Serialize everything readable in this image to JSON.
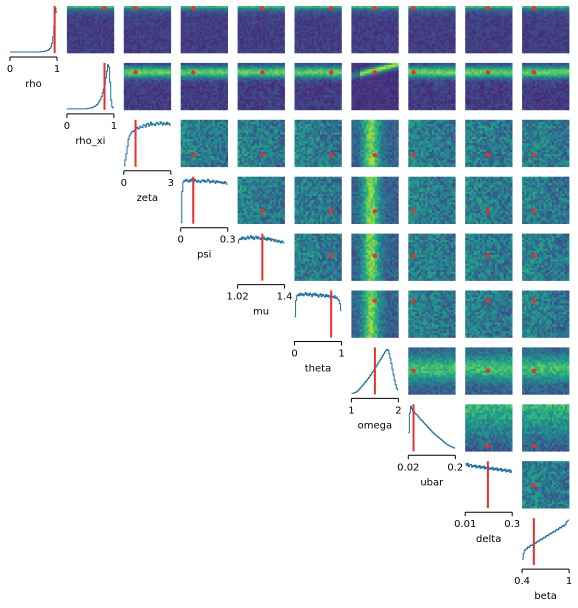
{
  "chart_data": {
    "type": "corner",
    "title": "",
    "parameters": [
      {
        "name": "rho",
        "range": [
          0,
          1
        ],
        "tick_labels": [
          "0",
          "1"
        ],
        "truth": 0.95,
        "hist": [
          0,
          0,
          0,
          0,
          0,
          0,
          0,
          0,
          0,
          0,
          0,
          0,
          0,
          0,
          0,
          0,
          0,
          0,
          0,
          0,
          0,
          0,
          0,
          0,
          0,
          0,
          0,
          0,
          0,
          0.01,
          0.01,
          0.01,
          0.02,
          0.02,
          0.03,
          0.04,
          0.06,
          0.08,
          0.12,
          0.2,
          0.35,
          0.6,
          1.0,
          0.9
        ]
      },
      {
        "name": "rho_xi",
        "range": [
          0,
          1
        ],
        "tick_labels": [
          "0",
          "1"
        ],
        "truth": 0.8,
        "hist": [
          0,
          0,
          0,
          0,
          0,
          0,
          0,
          0,
          0,
          0,
          0,
          0,
          0,
          0,
          0,
          0,
          0,
          0,
          0,
          0.01,
          0.01,
          0.02,
          0.02,
          0.03,
          0.04,
          0.05,
          0.06,
          0.08,
          0.1,
          0.13,
          0.17,
          0.22,
          0.28,
          0.36,
          0.45,
          0.56,
          0.7,
          0.86,
          1.0,
          0.95,
          0.6,
          0.2,
          0.05,
          0.02
        ]
      },
      {
        "name": "zeta",
        "range": [
          0,
          3
        ],
        "tick_labels": [
          "0",
          "3"
        ],
        "truth": 0.75,
        "hist": [
          0.0,
          0.12,
          0.25,
          0.4,
          0.55,
          0.62,
          0.66,
          0.7,
          0.72,
          0.71,
          0.74,
          0.78,
          0.8,
          0.76,
          0.78,
          0.82,
          0.8,
          0.79,
          0.85,
          0.84,
          0.8,
          0.86,
          0.88,
          0.82,
          0.85,
          0.9,
          0.84,
          0.87,
          0.86,
          0.83,
          0.88,
          0.9,
          0.85,
          0.86,
          0.91,
          0.88,
          0.84,
          0.89,
          0.87,
          0.85,
          0.9,
          0.86,
          0.88,
          0.84
        ]
      },
      {
        "name": "psi",
        "range": [
          0,
          0.3
        ],
        "tick_labels": [
          "0",
          "0.3"
        ],
        "truth": 0.08,
        "hist": [
          0.0,
          0.62,
          0.8,
          0.84,
          0.82,
          0.86,
          0.83,
          0.8,
          0.85,
          0.82,
          0.87,
          0.84,
          0.81,
          0.86,
          0.83,
          0.8,
          0.84,
          0.82,
          0.79,
          0.83,
          0.85,
          0.81,
          0.84,
          0.8,
          0.82,
          0.86,
          0.83,
          0.79,
          0.82,
          0.8,
          0.84,
          0.81,
          0.78,
          0.83,
          0.8,
          0.82,
          0.79,
          0.81,
          0.78,
          0.8,
          0.77,
          0.81,
          0.79,
          0.76
        ]
      },
      {
        "name": "mu",
        "range": [
          1.02,
          1.4
        ],
        "tick_labels": [
          "1.02",
          "1.4"
        ],
        "truth": 1.22,
        "hist": [
          0.55,
          0.6,
          0.62,
          0.6,
          0.64,
          0.61,
          0.63,
          0.6,
          0.62,
          0.65,
          0.61,
          0.63,
          0.66,
          0.62,
          0.64,
          0.6,
          0.63,
          0.65,
          0.61,
          0.64,
          0.62,
          0.6,
          0.63,
          0.61,
          0.64,
          0.6,
          0.62,
          0.59,
          0.63,
          0.6,
          0.62,
          0.58,
          0.61,
          0.6,
          0.57,
          0.6,
          0.58,
          0.56,
          0.59,
          0.57,
          0.55,
          0.58,
          0.56,
          0.55
        ]
      },
      {
        "name": "theta",
        "range": [
          0,
          1
        ],
        "tick_labels": [
          "0",
          "1"
        ],
        "truth": 0.78,
        "hist": [
          0.3,
          0.55,
          0.62,
          0.64,
          0.62,
          0.66,
          0.63,
          0.65,
          0.62,
          0.64,
          0.67,
          0.63,
          0.65,
          0.62,
          0.66,
          0.64,
          0.61,
          0.65,
          0.63,
          0.66,
          0.62,
          0.64,
          0.6,
          0.63,
          0.65,
          0.61,
          0.64,
          0.62,
          0.6,
          0.64,
          0.61,
          0.63,
          0.6,
          0.62,
          0.65,
          0.61,
          0.59,
          0.62,
          0.58,
          0.6,
          0.57,
          0.55,
          0.5,
          0.4
        ]
      },
      {
        "name": "omega",
        "range": [
          1,
          2
        ],
        "tick_labels": [
          "1",
          "2"
        ],
        "truth": 1.5,
        "hist": [
          0,
          0,
          0.01,
          0.02,
          0.03,
          0.05,
          0.07,
          0.1,
          0.12,
          0.15,
          0.18,
          0.21,
          0.24,
          0.27,
          0.3,
          0.33,
          0.36,
          0.4,
          0.43,
          0.47,
          0.5,
          0.54,
          0.58,
          0.62,
          0.66,
          0.7,
          0.74,
          0.78,
          0.82,
          0.86,
          0.9,
          0.94,
          0.97,
          1.0,
          0.98,
          0.9,
          0.8,
          0.68,
          0.55,
          0.42,
          0.3,
          0.2,
          0.12,
          0.08
        ]
      },
      {
        "name": "ubar",
        "range": [
          0.02,
          0.2
        ],
        "tick_labels": [
          "0.02",
          "0.2"
        ],
        "truth": 0.04,
        "hist": [
          0.4,
          0.85,
          1.0,
          0.95,
          0.9,
          0.88,
          0.84,
          0.82,
          0.8,
          0.76,
          0.74,
          0.7,
          0.68,
          0.66,
          0.63,
          0.6,
          0.58,
          0.55,
          0.52,
          0.5,
          0.47,
          0.45,
          0.42,
          0.4,
          0.37,
          0.35,
          0.33,
          0.31,
          0.29,
          0.27,
          0.25,
          0.23,
          0.21,
          0.19,
          0.17,
          0.15,
          0.13,
          0.12,
          0.1,
          0.09,
          0.08,
          0.07,
          0.06,
          0.05
        ]
      },
      {
        "name": "delta",
        "range": [
          0.01,
          0.3
        ],
        "tick_labels": [
          "0.01",
          "0.3"
        ],
        "truth": 0.15,
        "hist": [
          0.75,
          0.72,
          0.76,
          0.7,
          0.73,
          0.74,
          0.69,
          0.72,
          0.7,
          0.73,
          0.68,
          0.71,
          0.69,
          0.72,
          0.67,
          0.7,
          0.68,
          0.71,
          0.66,
          0.69,
          0.67,
          0.7,
          0.65,
          0.68,
          0.66,
          0.69,
          0.64,
          0.67,
          0.65,
          0.68,
          0.63,
          0.66,
          0.64,
          0.67,
          0.62,
          0.65,
          0.63,
          0.66,
          0.61,
          0.64,
          0.62,
          0.65,
          0.6,
          0.63
        ]
      },
      {
        "name": "beta",
        "range": [
          0.4,
          1
        ],
        "tick_labels": [
          "0.4",
          "1"
        ],
        "truth": 0.55,
        "hist": [
          0.1,
          0.22,
          0.28,
          0.3,
          0.32,
          0.35,
          0.34,
          0.37,
          0.39,
          0.38,
          0.41,
          0.43,
          0.42,
          0.45,
          0.47,
          0.46,
          0.49,
          0.51,
          0.5,
          0.53,
          0.55,
          0.54,
          0.57,
          0.59,
          0.58,
          0.61,
          0.63,
          0.62,
          0.65,
          0.67,
          0.66,
          0.69,
          0.71,
          0.7,
          0.73,
          0.75,
          0.74,
          0.77,
          0.79,
          0.78,
          0.81,
          0.85,
          0.88,
          0.9
        ]
      }
    ],
    "heatmap_colormap": "viridis",
    "truth_color": "#e8312a",
    "hist_color": "#1f6f9e",
    "grid": false
  }
}
